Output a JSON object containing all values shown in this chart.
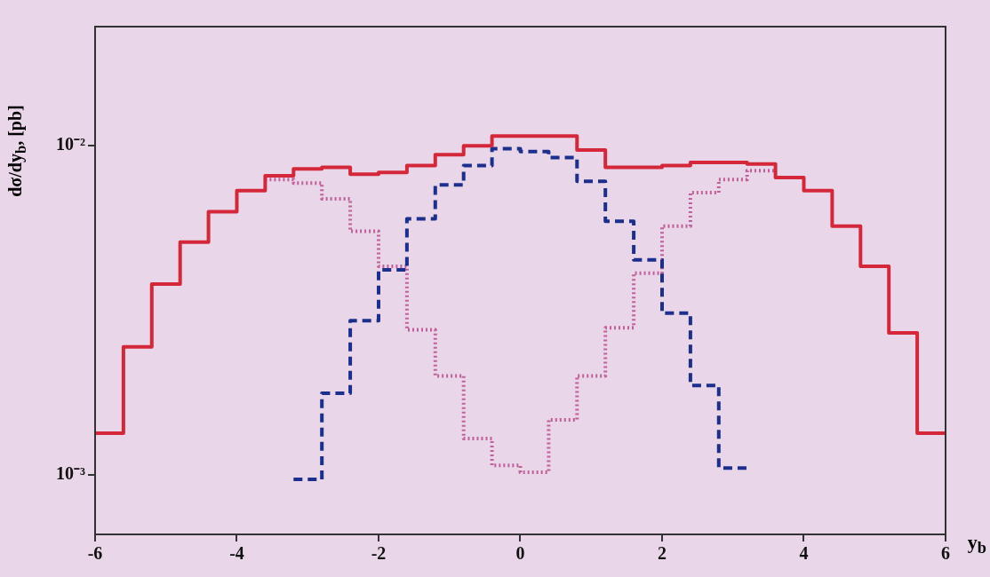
{
  "chart_data": {
    "type": "histogram",
    "xlabel": "y$_{b}$",
    "ylabel": "dσ/dy$_{b}$, [pb]",
    "bins": [
      -6,
      -5.6,
      -5.2,
      -4.8,
      -4.4,
      -4,
      -3.6,
      -3.2,
      -2.8,
      -2.4,
      -2,
      -1.6,
      -1.2,
      -0.8,
      -0.4,
      0,
      0.4,
      0.8,
      1.2,
      1.6,
      2,
      2.4,
      2.8,
      3.2,
      3.6,
      4,
      4.4,
      4.8,
      5.2,
      5.6,
      6
    ],
    "series": [
      {
        "color": "#d4283a",
        "line_style": "solid",
        "values": [
          0.00134,
          0.00245,
          0.0038,
          0.0051,
          0.0063,
          0.0073,
          0.0081,
          0.0085,
          0.0086,
          0.0082,
          0.0083,
          0.0087,
          0.0094,
          0.01,
          0.0107,
          0.0107,
          0.0107,
          0.0097,
          0.0086,
          0.0086,
          0.0087,
          0.0089,
          0.0089,
          0.0088,
          0.008,
          0.0073,
          0.0057,
          0.0043,
          0.0027,
          0.00134
        ]
      },
      {
        "color": "#1c2f8c",
        "line_style": "dashed",
        "bins": [
          -3.2,
          -2.8,
          -2.4,
          -2,
          -1.6,
          -1.2,
          -0.8,
          -0.4,
          0,
          0.4,
          0.8,
          1.2,
          1.6,
          2,
          2.4,
          2.8,
          3.2
        ],
        "values": [
          0.00097,
          0.00177,
          0.00294,
          0.0042,
          0.006,
          0.0076,
          0.0087,
          0.0098,
          0.0096,
          0.0092,
          0.0078,
          0.0059,
          0.0045,
          0.0031,
          0.00187,
          0.00105
        ]
      },
      {
        "color": "#c0609a",
        "line_style": "dotted",
        "bins": [
          -3.6,
          -3.2,
          -2.8,
          -2.4,
          -2,
          -1.6,
          -1.2,
          -0.8,
          -0.4,
          0,
          0.4,
          0.8,
          1.2,
          1.6,
          2,
          2.4,
          2.8,
          3.2,
          3.6
        ],
        "values": [
          0.0079,
          0.0077,
          0.0069,
          0.0055,
          0.0043,
          0.00276,
          0.002,
          0.00129,
          0.00107,
          0.00102,
          0.00147,
          0.002,
          0.0028,
          0.0041,
          0.0057,
          0.0072,
          0.0079,
          0.0084
        ]
      }
    ],
    "xlim": [
      -6,
      6
    ],
    "xticks": [
      -6,
      -4,
      -2,
      0,
      2,
      4,
      6
    ],
    "ylim": [
      0.00066,
      0.023
    ],
    "yticks": [
      {
        "value": 0.001,
        "label": "10⁻³"
      },
      {
        "value": 0.01,
        "label": "10⁻²"
      }
    ],
    "log": "y",
    "grid": false,
    "legend": false
  }
}
